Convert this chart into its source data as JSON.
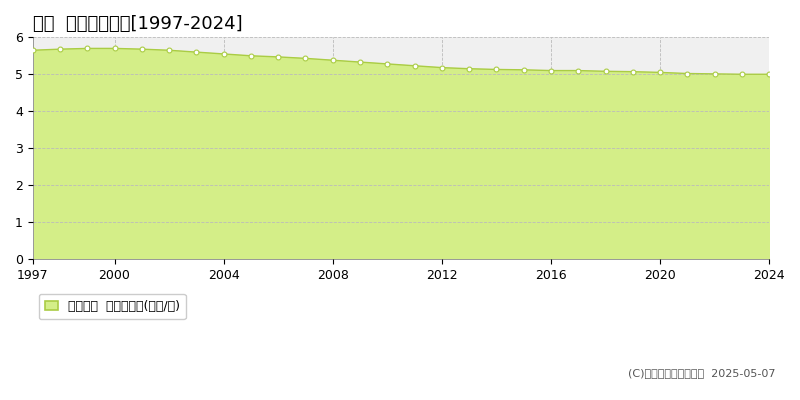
{
  "title": "綾町  基準地価推移[1997-2024]",
  "years": [
    1997,
    1998,
    1999,
    2000,
    2001,
    2002,
    2003,
    2004,
    2005,
    2006,
    2007,
    2008,
    2009,
    2010,
    2011,
    2012,
    2013,
    2014,
    2015,
    2016,
    2017,
    2018,
    2019,
    2020,
    2021,
    2022,
    2023,
    2024
  ],
  "values": [
    5.65,
    5.68,
    5.7,
    5.7,
    5.68,
    5.65,
    5.6,
    5.55,
    5.5,
    5.47,
    5.43,
    5.38,
    5.33,
    5.28,
    5.23,
    5.18,
    5.15,
    5.13,
    5.12,
    5.1,
    5.1,
    5.08,
    5.07,
    5.05,
    5.02,
    5.01,
    5.0,
    5.0
  ],
  "line_color": "#aacc44",
  "fill_color": "#d4ee88",
  "marker_facecolor": "#ffffff",
  "marker_edge_color": "#aacc44",
  "bg_color": "#ffffff",
  "plot_bg_color": "#f0f0f0",
  "grid_color": "#bbbbbb",
  "vgrid_color": "#bbbbbb",
  "ylim": [
    0,
    6
  ],
  "yticks": [
    0,
    1,
    2,
    3,
    4,
    5,
    6
  ],
  "xticks": [
    1997,
    2000,
    2004,
    2008,
    2012,
    2016,
    2020,
    2024
  ],
  "legend_label": "基準地価  平均坪単価(万円/坪)",
  "copyright": "(C)土地価格ドットコム  2025-05-07",
  "title_fontsize": 13,
  "tick_fontsize": 9,
  "legend_fontsize": 9,
  "copyright_fontsize": 8
}
